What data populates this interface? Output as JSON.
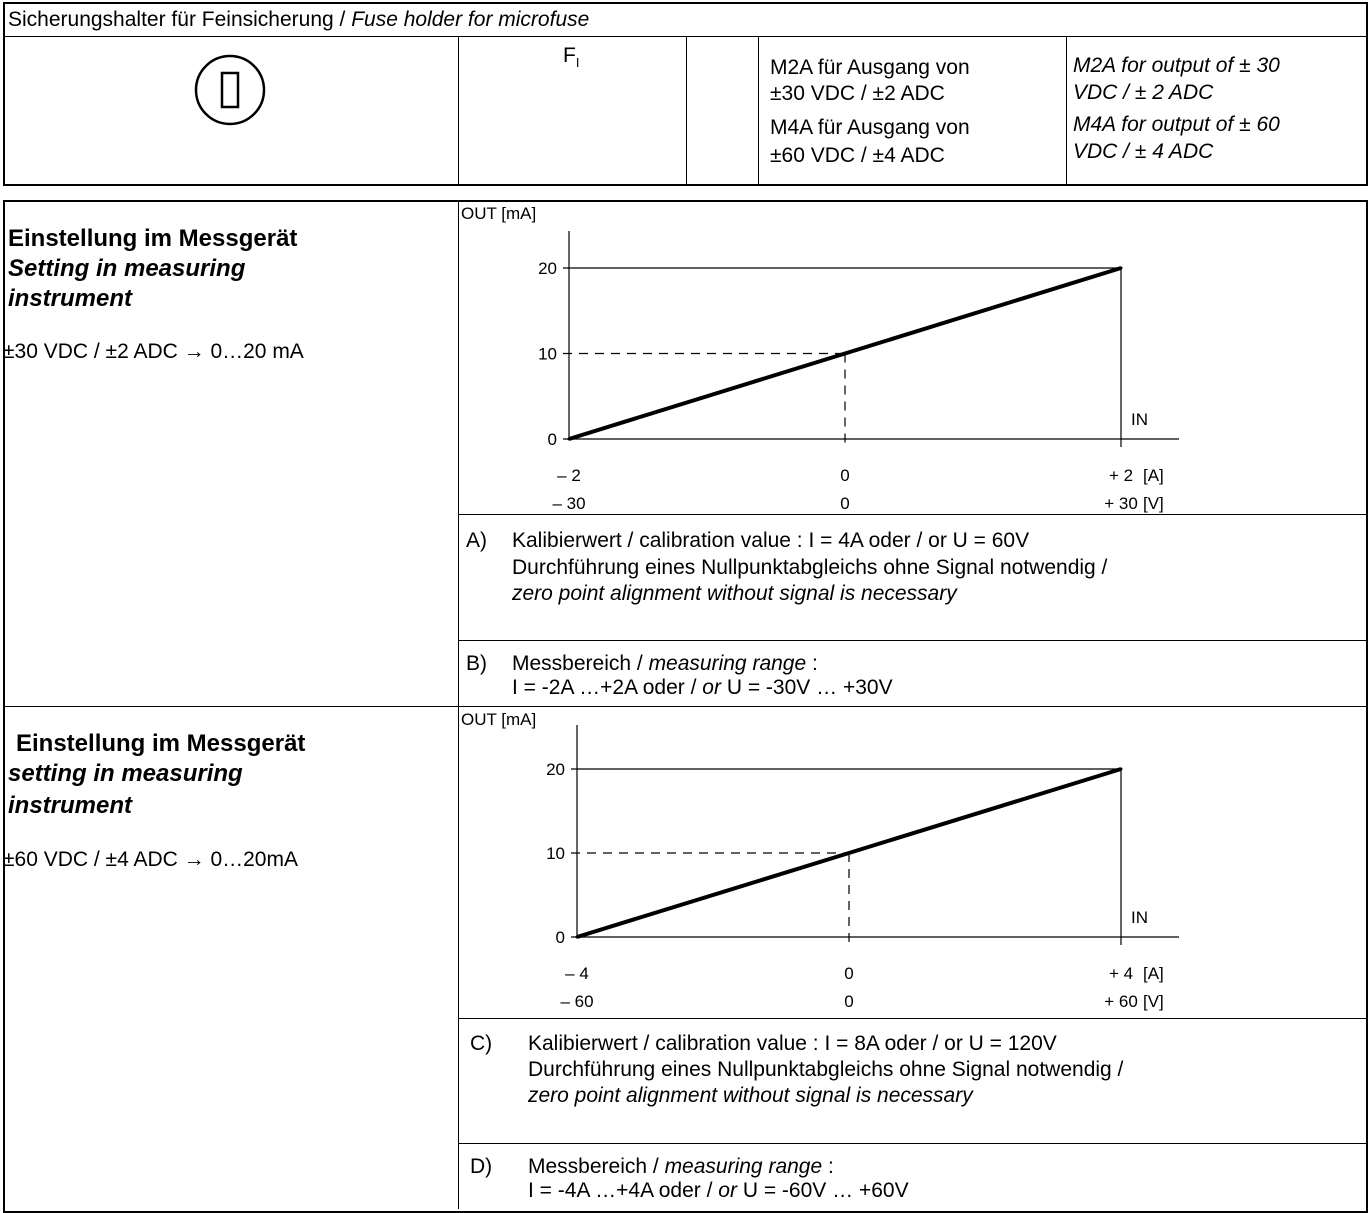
{
  "fuse_table": {
    "title_de": "Sicherungshalter für Feinsicherung",
    "title_sep": " / ",
    "title_en": "Fuse holder for microfuse",
    "symbol_label": "F",
    "symbol_sub": "I",
    "col_de": [
      "M2A für Ausgang von",
      "±30 VDC / ±2 ADC",
      "M4A für Ausgang von",
      "±60 VDC / ±4 ADC"
    ],
    "col_en": [
      "M2A for output of ± 30",
      "VDC / ± 2 ADC",
      "M4A for output of ± 60",
      "VDC / ± 4 ADC"
    ]
  },
  "section1": {
    "heading_de": "Einstellung im Messgerät",
    "heading_en_1": "Setting in measuring",
    "heading_en_2": "instrument",
    "range": "±30 VDC / ±2 ADC → 0…20 mA",
    "note_a": {
      "marker": "A)",
      "line1": "Kalibierwert / calibration value : I = 4A oder / or  U = 60V",
      "line2": "Durchführung eines Nullpunktabgleichs ohne Signal notwendig /",
      "line3": "zero point alignment without signal is necessary"
    },
    "note_b": {
      "marker": "B)",
      "line1_de": "Messbereich / ",
      "line1_en": "measuring range",
      "line1_end": " :",
      "line2_a": "I = -2A …+2A oder / ",
      "line2_or": "or",
      "line2_b": " U = -30V … +30V"
    }
  },
  "section2": {
    "heading_de": "Einstellung im Messgerät",
    "heading_en_1": "setting in measuring",
    "heading_en_2": "instrument",
    "range": "±60 VDC / ±4 ADC → 0…20mA",
    "note_c": {
      "marker": "C)",
      "line1": "Kalibierwert / calibration value : I = 8A oder / or  U = 120V",
      "line2": "Durchführung eines Nullpunktabgleichs ohne Signal notwendig /",
      "line3": "zero point alignment without signal is necessary"
    },
    "note_d": {
      "marker": "D)",
      "line1_de": "Messbereich / ",
      "line1_en": "measuring range",
      "line1_end": " :",
      "line2_a": "I = -4A …+4A oder / ",
      "line2_or": "or",
      "line2_b": " U = -60V … +60V"
    }
  },
  "chart_data": [
    {
      "type": "line",
      "ylabel": "OUT [mA]",
      "xlabel": "IN",
      "y_ticks": [
        "0",
        "10",
        "20"
      ],
      "x_ticks_A": [
        "– 2",
        "0",
        "+ 2"
      ],
      "x_ticks_V": [
        "– 30",
        "0",
        "+ 30"
      ],
      "unit_A": "[A]",
      "unit_V": "[V]",
      "x": [
        -2,
        0,
        2
      ],
      "y": [
        0,
        10,
        20
      ],
      "xlim": [
        -2,
        2
      ],
      "ylim": [
        0,
        20
      ]
    },
    {
      "type": "line",
      "ylabel": "OUT [mA]",
      "xlabel": "IN",
      "y_ticks": [
        "0",
        "10",
        "20"
      ],
      "x_ticks_A": [
        "– 4",
        "0",
        "+ 4"
      ],
      "x_ticks_V": [
        "– 60",
        "0",
        "+ 60"
      ],
      "unit_A": "[A]",
      "unit_V": "[V]",
      "x": [
        -4,
        0,
        4
      ],
      "y": [
        0,
        10,
        20
      ],
      "xlim": [
        -4,
        4
      ],
      "ylim": [
        0,
        20
      ]
    }
  ]
}
